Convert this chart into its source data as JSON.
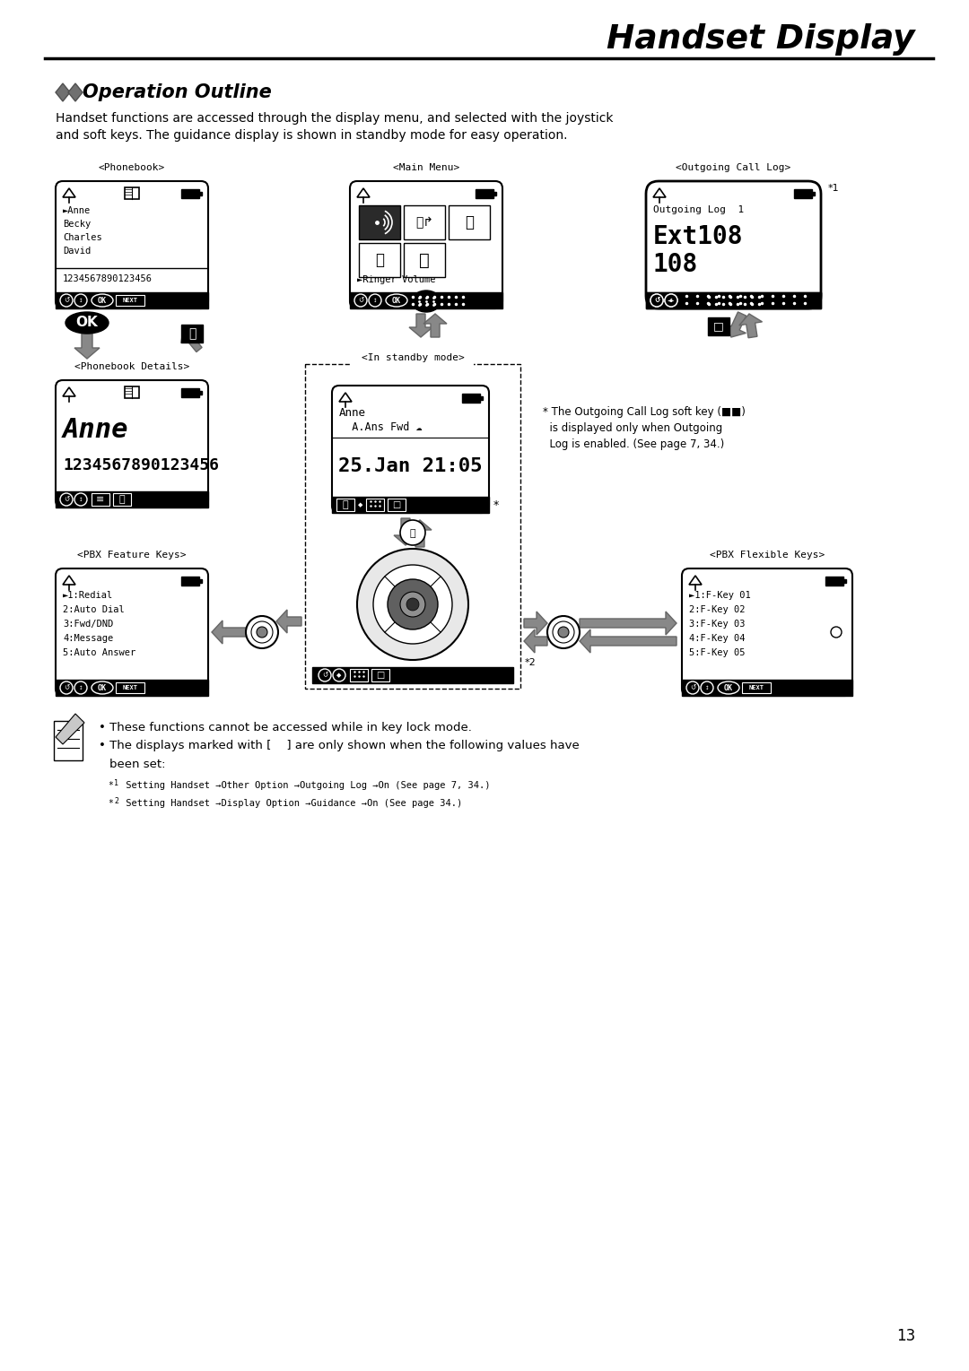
{
  "title": "Handset Display",
  "section_title": "Operation Outline",
  "description_line1": "Handset functions are accessed through the display menu, and selected with the joystick",
  "description_line2": "and soft keys. The guidance display is shown in standby mode for easy operation.",
  "page_number": "13",
  "bg_color": "#ffffff",
  "phonebook_label": "<Phonebook>",
  "phonebook_entries": [
    "►Anne",
    "Becky",
    "Charles",
    "David"
  ],
  "phonebook_number": "1234567890123456",
  "main_menu_label": "<Main Menu>",
  "main_menu_ringer": "►Ringer Volume",
  "outgoing_label": "<Outgoing Call Log>",
  "outgoing_log": "Outgoing Log  1",
  "outgoing_ext": "Ext108",
  "outgoing_num": "108",
  "phonebook_details_label": "<Phonebook Details>",
  "pb_details_name": "Anne",
  "pb_details_number": "1234567890123456",
  "standby_label": "<In standby mode>",
  "standby_name": "Anne",
  "standby_sub": "  A.Ans Fwd ☁",
  "standby_date": "25.Jan 21:05",
  "pbx_feature_label": "<PBX Feature Keys>",
  "pbx_feature_entries": [
    "►1:Redial",
    "2:Auto Dial",
    "3:Fwd/DND",
    "4:Message",
    "5:Auto Answer"
  ],
  "pbx_flexible_label": "<PBX Flexible Keys>",
  "pbx_flexible_entries": [
    "►1:F-Key 01",
    "2:F-Key 02",
    "3:F-Key 03",
    "4:F-Key 04",
    "5:F-Key 05"
  ],
  "note_outgoing_1": "* The Outgoing Call Log soft key (",
  "note_outgoing_2": "  is displayed only when Outgoing",
  "note_outgoing_3": "  Log is enabled. (See page 7, 34.)",
  "note_star1_pre": "*",
  "note_star1_sup": "1",
  "note_star1_text": " Setting Handset →Other Option →Outgoing Log →On (See page 7, 34.)",
  "note_star2_pre": "*",
  "note_star2_sup": "2",
  "note_star2_text": " Setting Handset →Display Option →Guidance →On (See page 34.)",
  "bullet1": "These functions cannot be accessed while in key lock mode.",
  "bullet2": "The displays marked with [    ] are only shown when the following values have",
  "bullet2b": "been set:"
}
